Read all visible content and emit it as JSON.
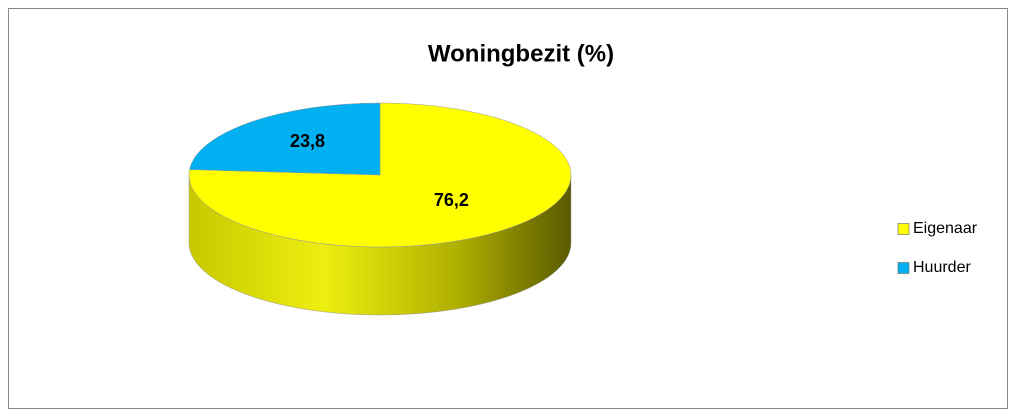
{
  "chart_data": {
    "type": "pie",
    "title": "Woningbezit (%)",
    "categories": [
      "Eigenaar",
      "Huurder"
    ],
    "values": [
      76.2,
      23.8
    ],
    "value_labels": [
      "76,2",
      "23,8"
    ],
    "colors": [
      "#ffff00",
      "#00b0f0"
    ],
    "legend": "right"
  }
}
